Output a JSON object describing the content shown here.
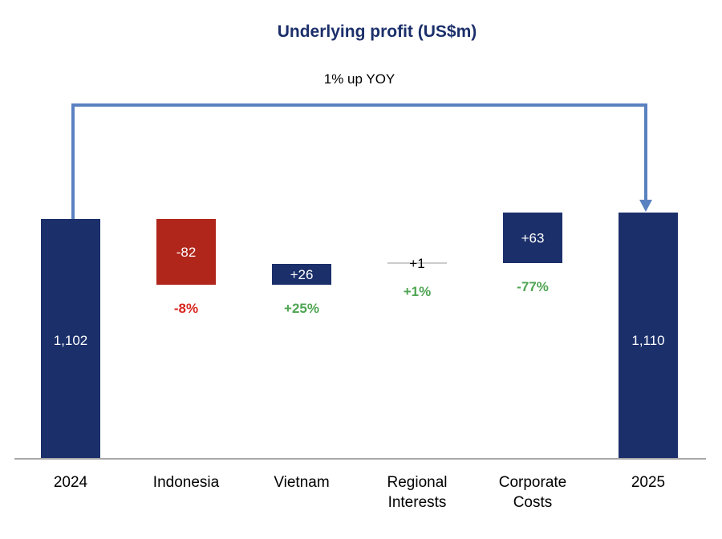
{
  "chart_data": {
    "type": "waterfall",
    "title": "Underlying profit (US$m)",
    "annotation": "1% up YOY",
    "categories": [
      "2024",
      "Indonesia",
      "Vietnam",
      "Regional Interests",
      "Corporate Costs",
      "2025"
    ],
    "category_lines": [
      [
        "2024"
      ],
      [
        "Indonesia"
      ],
      [
        "Vietnam"
      ],
      [
        "Regional",
        "Interests"
      ],
      [
        "Corporate",
        "Costs"
      ],
      [
        "2025"
      ]
    ],
    "values": [
      1102,
      -82,
      26,
      1,
      63,
      1110
    ],
    "kinds": [
      "total",
      "delta",
      "delta",
      "delta",
      "delta",
      "total"
    ],
    "value_labels": [
      "1,102",
      "-82",
      "+26",
      "+1",
      "+63",
      "1,110"
    ],
    "pct_labels": [
      "",
      "-8%",
      "+25%",
      "+1%",
      "-77%",
      ""
    ],
    "ylim": [
      804,
      1140
    ],
    "grid": false,
    "colors": {
      "total": "#1b2f6a",
      "increase": "#1b2f6a",
      "decrease": "#b1261b",
      "pct_positive": "#4fa553",
      "pct_negative": "#d7261e",
      "arrow": "#5a81c0",
      "title": "#1b2f6a",
      "axis": "#8a8a8a"
    }
  }
}
